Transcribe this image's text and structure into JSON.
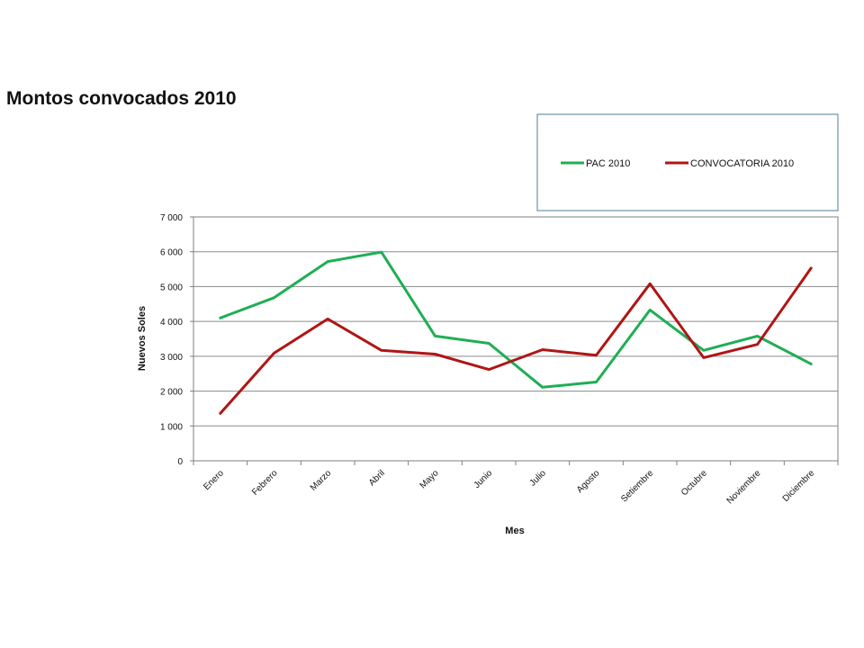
{
  "chart_data": {
    "type": "line",
    "title": "Montos convocados 2010",
    "xlabel": "Mes",
    "ylabel": "Nuevos  Soles",
    "categories": [
      "Enero",
      "Febrero",
      "Marzo",
      "Abril",
      "Mayo",
      "Junio",
      "Julio",
      "Agosto",
      "Setiembre",
      "Octubre",
      "Noviembre",
      "Diciembre"
    ],
    "ylim": [
      0,
      7000
    ],
    "yticks": [
      0,
      1000,
      2000,
      3000,
      4000,
      5000,
      6000,
      7000
    ],
    "ytick_labels": [
      "0",
      "1 000",
      "2 000",
      "3 000",
      "4 000",
      "5 000",
      "6 000",
      "7 000"
    ],
    "grid": true,
    "legend_position": "top-right",
    "series": [
      {
        "name": "PAC 2010",
        "color": "#1fae55",
        "values": [
          4100,
          4680,
          5720,
          5990,
          3580,
          3370,
          2110,
          2260,
          4330,
          3170,
          3580,
          2780
        ]
      },
      {
        "name": "CONVOCATORIA 2010",
        "color": "#b01515",
        "values": [
          1360,
          3090,
          4070,
          3170,
          3060,
          2620,
          3190,
          3030,
          5080,
          2960,
          3340,
          5530
        ]
      }
    ]
  }
}
